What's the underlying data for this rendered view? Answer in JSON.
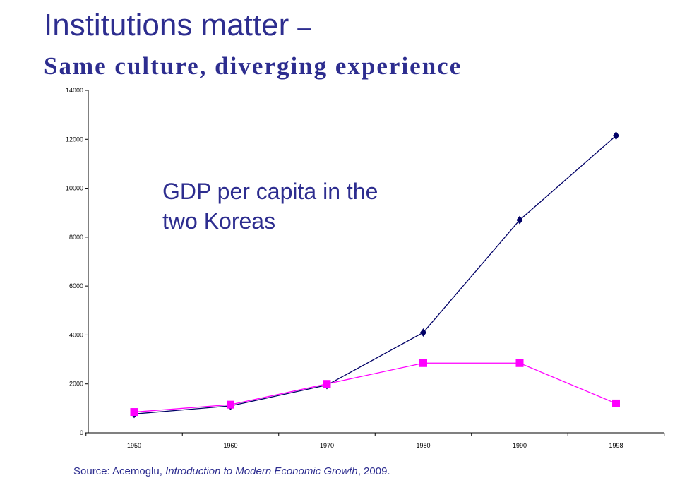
{
  "slide": {
    "title": "Institutions matter",
    "title_dash": "–",
    "subtitle": "Same culture, diverging experience",
    "annotation_line1": "GDP per capita in the",
    "annotation_line2": "two Koreas",
    "source_prefix": "Source: Acemoglu, ",
    "source_title": "Introduction to Modern Economic Growth",
    "source_suffix": ", 2009."
  },
  "colors": {
    "text": "#2d2d8f",
    "series_1": "#000066",
    "series_2": "#ff00ff",
    "axis": "#000000"
  },
  "chart_data": {
    "type": "line",
    "title": "GDP per capita in the two Koreas",
    "xlabel": "",
    "ylabel": "",
    "categories": [
      "1950",
      "1960",
      "1970",
      "1980",
      "1990",
      "1998"
    ],
    "y_ticks": [
      0,
      2000,
      4000,
      6000,
      8000,
      10000,
      12000,
      14000
    ],
    "ylim": [
      0,
      14000
    ],
    "grid": false,
    "legend": "none",
    "series": [
      {
        "values": [
          770,
          1100,
          1950,
          4100,
          8700,
          12150
        ],
        "marker": "diamond",
        "color": "#000066"
      },
      {
        "values": [
          850,
          1150,
          2000,
          2850,
          2850,
          1200
        ],
        "marker": "square",
        "color": "#ff00ff"
      }
    ]
  }
}
